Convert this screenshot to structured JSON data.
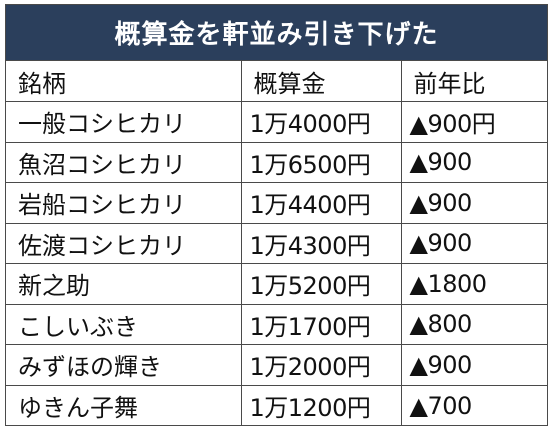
{
  "title": "概算金を軒並み引き下げた",
  "headers": {
    "brand": "銘柄",
    "price": "概算金",
    "change": "前年比"
  },
  "rows": [
    {
      "brand": "一般コシヒカリ",
      "price": "1万4000円",
      "change": "▲900円"
    },
    {
      "brand": "魚沼コシヒカリ",
      "price": "1万6500円",
      "change": "▲900"
    },
    {
      "brand": "岩船コシヒカリ",
      "price": "1万4400円",
      "change": "▲900"
    },
    {
      "brand": "佐渡コシヒカリ",
      "price": "1万4300円",
      "change": "▲900"
    },
    {
      "brand": "新之助",
      "price": "1万5200円",
      "change": "▲1800"
    },
    {
      "brand": "こしいぶき",
      "price": "1万1700円",
      "change": "▲800"
    },
    {
      "brand": "みずほの輝き",
      "price": "1万2000円",
      "change": "▲900"
    },
    {
      "brand": "ゆきん子舞",
      "price": "1万1200円",
      "change": "▲700"
    }
  ],
  "colors": {
    "title_background": "#2b3f5c",
    "title_text": "#ffffff",
    "border": "#4a4a4a"
  }
}
